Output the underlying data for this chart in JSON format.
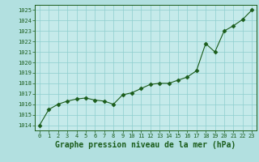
{
  "x": [
    0,
    1,
    2,
    3,
    4,
    5,
    6,
    7,
    8,
    9,
    10,
    11,
    12,
    13,
    14,
    15,
    16,
    17,
    18,
    19,
    20,
    21,
    22,
    23
  ],
  "y": [
    1014.0,
    1015.5,
    1016.0,
    1016.3,
    1016.5,
    1016.6,
    1016.4,
    1016.3,
    1016.0,
    1016.9,
    1017.1,
    1017.5,
    1017.9,
    1018.0,
    1018.0,
    1018.3,
    1018.6,
    1019.2,
    1021.8,
    1021.0,
    1023.0,
    1023.5,
    1024.1,
    1025.0
  ],
  "line_color": "#1a5c1a",
  "marker": "D",
  "marker_size": 2.5,
  "bg_color": "#b2e0e0",
  "grid_color": "#8ecece",
  "title": "Graphe pression niveau de la mer (hPa)",
  "title_color": "#1a5c1a",
  "title_fontsize": 7.0,
  "ylim": [
    1013.5,
    1025.5
  ],
  "yticks": [
    1014,
    1015,
    1016,
    1017,
    1018,
    1019,
    1020,
    1021,
    1022,
    1023,
    1024,
    1025
  ],
  "xlim": [
    -0.5,
    23.5
  ],
  "xticks": [
    0,
    1,
    2,
    3,
    4,
    5,
    6,
    7,
    8,
    9,
    10,
    11,
    12,
    13,
    14,
    15,
    16,
    17,
    18,
    19,
    20,
    21,
    22,
    23
  ],
  "tick_color": "#1a5c1a",
  "spine_color": "#1a5c1a",
  "axis_bg": "#c5eaea",
  "tick_fontsize": 5.0,
  "linewidth": 0.8
}
